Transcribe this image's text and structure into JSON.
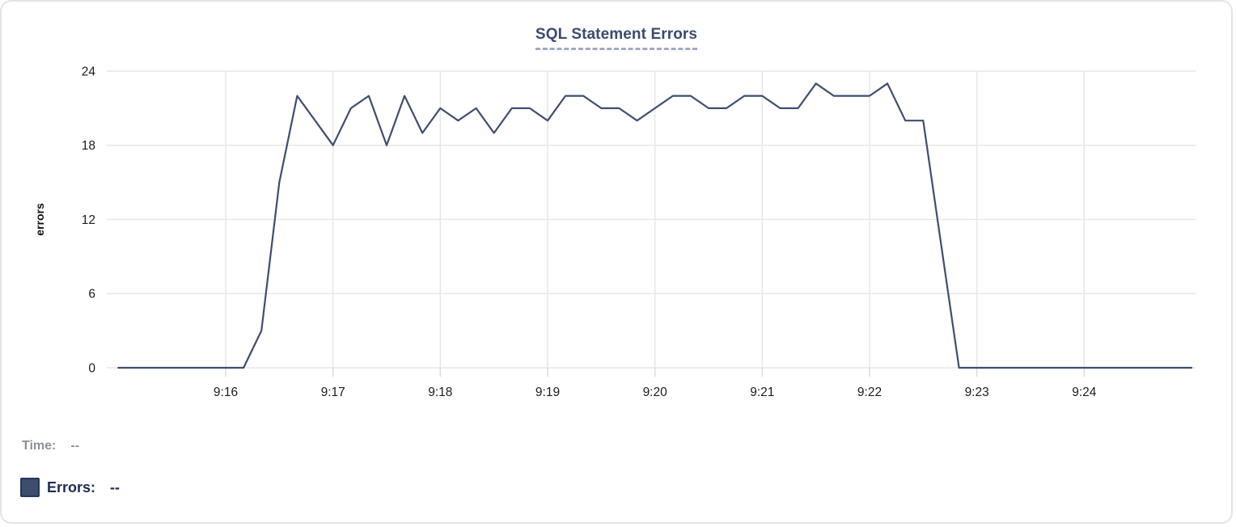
{
  "card": {
    "title": "SQL Statement Errors"
  },
  "chart_data": {
    "type": "line",
    "title": "SQL Statement Errors",
    "xlabel": "",
    "ylabel": "errors",
    "x": [
      "9:15:00",
      "9:15:10",
      "9:15:20",
      "9:15:30",
      "9:15:40",
      "9:15:50",
      "9:16:00",
      "9:16:10",
      "9:16:20",
      "9:16:30",
      "9:16:40",
      "9:16:50",
      "9:17:00",
      "9:17:10",
      "9:17:20",
      "9:17:30",
      "9:17:40",
      "9:17:50",
      "9:18:00",
      "9:18:10",
      "9:18:20",
      "9:18:30",
      "9:18:40",
      "9:18:50",
      "9:19:00",
      "9:19:10",
      "9:19:20",
      "9:19:30",
      "9:19:40",
      "9:19:50",
      "9:20:00",
      "9:20:10",
      "9:20:20",
      "9:20:30",
      "9:20:40",
      "9:20:50",
      "9:21:00",
      "9:21:10",
      "9:21:20",
      "9:21:30",
      "9:21:40",
      "9:21:50",
      "9:22:00",
      "9:22:10",
      "9:22:20",
      "9:22:30",
      "9:22:40",
      "9:22:50",
      "9:23:00",
      "9:23:10",
      "9:23:20",
      "9:23:30",
      "9:23:40",
      "9:23:50",
      "9:24:00",
      "9:24:10",
      "9:24:20",
      "9:24:30",
      "9:24:40",
      "9:24:50",
      "9:25:00"
    ],
    "series": [
      {
        "name": "Errors",
        "color": "#3e4e70",
        "values": [
          0,
          0,
          0,
          0,
          0,
          0,
          0,
          0,
          3,
          15,
          22,
          20,
          18,
          21,
          22,
          18,
          22,
          19,
          21,
          20,
          21,
          19,
          21,
          21,
          20,
          22,
          22,
          21,
          21,
          20,
          21,
          22,
          22,
          21,
          21,
          22,
          22,
          21,
          21,
          23,
          22,
          22,
          22,
          23,
          20,
          20,
          10,
          0,
          0,
          0,
          0,
          0,
          0,
          0,
          0,
          0,
          0,
          0,
          0,
          0,
          0
        ]
      }
    ],
    "x_tick_labels": [
      "9:16",
      "9:17",
      "9:18",
      "9:19",
      "9:20",
      "9:21",
      "9:22",
      "9:23",
      "9:24"
    ],
    "y_ticks": [
      0,
      6,
      12,
      18,
      24
    ],
    "ylim": [
      0,
      24
    ],
    "xlim": [
      "9:15:00",
      "9:25:00"
    ],
    "grid": true,
    "legend_position": "bottom-left"
  },
  "footer": {
    "time_label": "Time:",
    "time_value": "--",
    "errors_label": "Errors:",
    "errors_value": "--"
  },
  "colors": {
    "line": "#3e4e70",
    "grid": "#e7e7e7",
    "title": "#3a4b6e",
    "title_underline": "#a0aac2",
    "tick_text": "#1c1c1e",
    "time_gray": "#8d9095",
    "errors_navy": "#1e2c55",
    "swatch": "#3e4d6c",
    "card_border": "#e3e4e6"
  }
}
